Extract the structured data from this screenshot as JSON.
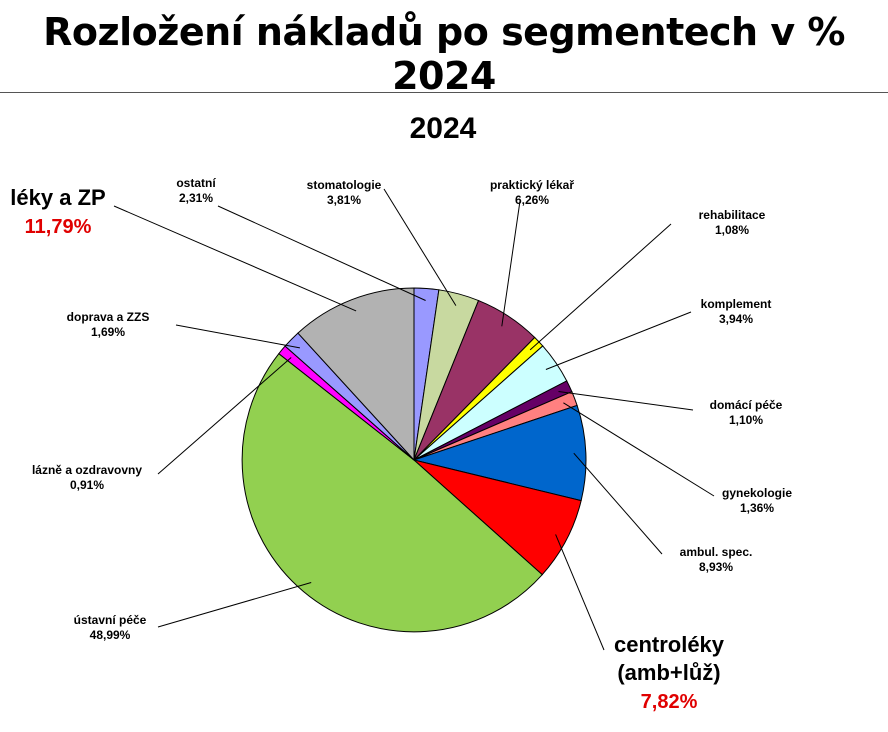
{
  "page": {
    "title": "Rozložení nákladů po segmentech v % 2024"
  },
  "chart_data": {
    "type": "pie",
    "title": "2024",
    "slices": [
      {
        "label": "ostatní",
        "value": 2.31,
        "value_text": "2,31%",
        "color": "#9999ff"
      },
      {
        "label": "stomatologie",
        "value": 3.81,
        "value_text": "3,81%",
        "color": "#c8d9a0"
      },
      {
        "label": "praktický lékař",
        "value": 6.26,
        "value_text": "6,26%",
        "color": "#993366"
      },
      {
        "label": "rehabilitace",
        "value": 1.08,
        "value_text": "1,08%",
        "color": "#ffff00"
      },
      {
        "label": "komplement",
        "value": 3.94,
        "value_text": "3,94%",
        "color": "#ccffff"
      },
      {
        "label": "domácí péče",
        "value": 1.1,
        "value_text": "1,10%",
        "color": "#660066"
      },
      {
        "label": "gynekologie",
        "value": 1.36,
        "value_text": "1,36%",
        "color": "#ff8080"
      },
      {
        "label": "ambul. spec.",
        "value": 8.93,
        "value_text": "8,93%",
        "color": "#0066cc"
      },
      {
        "label": "centroléky (amb+lůž)",
        "label_lines": [
          "centroléky",
          "(amb+lůž)"
        ],
        "value": 7.82,
        "value_text": "7,82%",
        "color": "#ff0000"
      },
      {
        "label": "ústavní péče",
        "value": 48.99,
        "value_text": "48,99%",
        "color": "#92d050"
      },
      {
        "label": "lázně a ozdravovny",
        "value": 0.91,
        "value_text": "0,91%",
        "color": "#ff00ff"
      },
      {
        "label": "doprava a ZZS",
        "value": 1.69,
        "value_text": "1,69%",
        "color": "#9999ff"
      },
      {
        "label": "léky a ZP",
        "value": 11.79,
        "value_text": "11,79%",
        "color": "#b2b2b2"
      }
    ]
  }
}
